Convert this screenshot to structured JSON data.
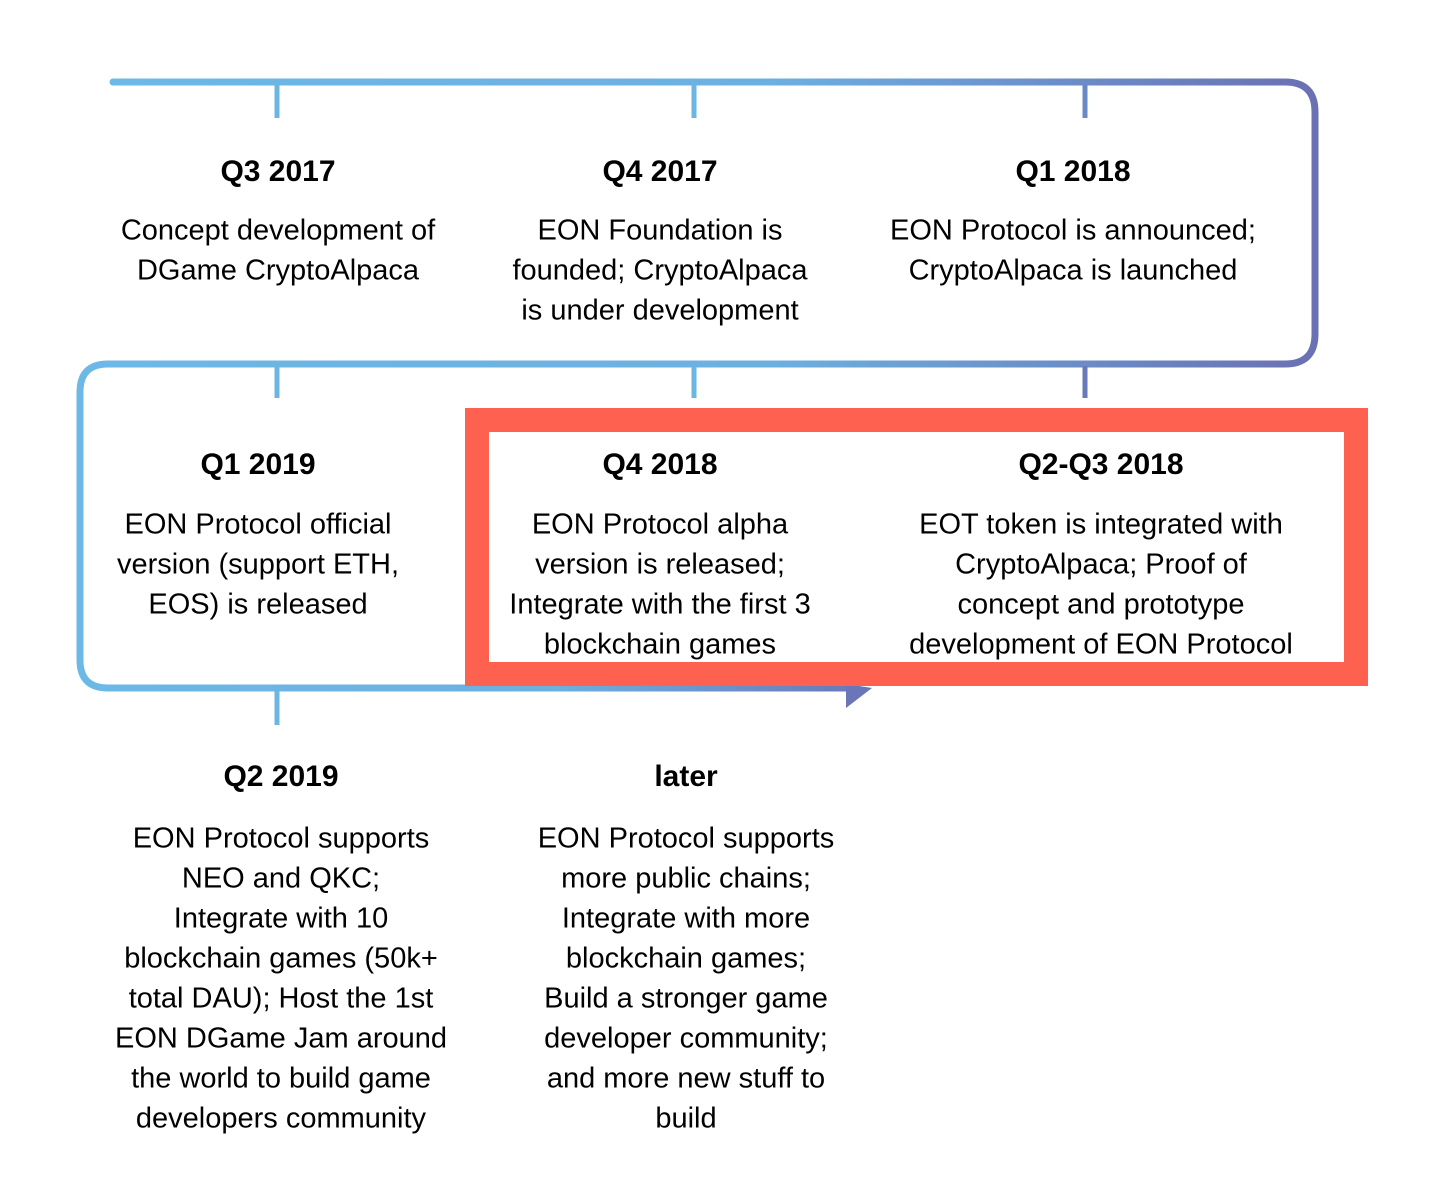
{
  "milestones": [
    {
      "title": "Q3 2017",
      "lines": [
        "Concept development of",
        "DGame CryptoAlpaca"
      ]
    },
    {
      "title": "Q4 2017",
      "lines": [
        "EON Foundation is",
        "founded;  CryptoAlpaca",
        "is under development"
      ]
    },
    {
      "title": "Q1 2018",
      "lines": [
        "EON Protocol is announced;",
        "CryptoAlpaca is launched"
      ]
    },
    {
      "title": "Q2-Q3 2018",
      "lines": [
        "EOT token is integrated with",
        "CryptoAlpaca; Proof of",
        "concept and prototype",
        "development of EON Protocol"
      ]
    },
    {
      "title": "Q4 2018",
      "lines": [
        "EON Protocol alpha",
        "version is released;",
        "Integrate with the first 3",
        "blockchain games"
      ]
    },
    {
      "title": "Q1 2019",
      "lines": [
        "EON Protocol official",
        "version (support ETH,",
        "EOS) is released"
      ]
    },
    {
      "title": "Q2 2019",
      "lines": [
        "EON Protocol supports",
        "NEO and QKC;",
        "Integrate with 10",
        "blockchain games (50k+",
        "total DAU); Host the 1st",
        "EON DGame Jam around",
        "the world to build game",
        "developers community"
      ]
    },
    {
      "title": "later",
      "lines": [
        "EON Protocol supports",
        "more public chains;",
        "Integrate with more",
        "blockchain games;",
        "Build a stronger game",
        "developer community;",
        "and more new stuff to",
        "build"
      ]
    }
  ]
}
